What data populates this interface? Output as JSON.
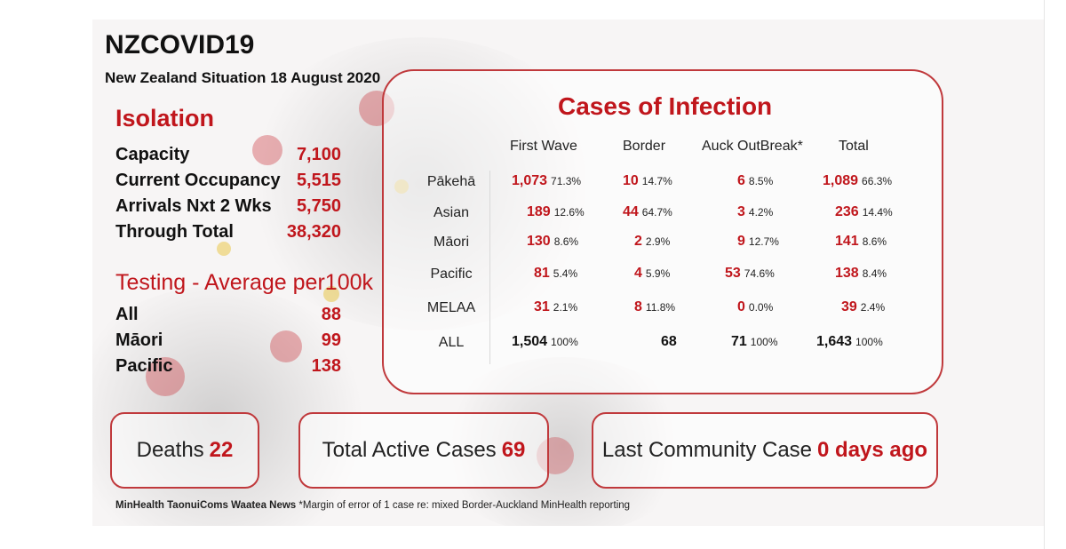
{
  "title": "NZCOVID19",
  "subtitle": "New Zealand Situation 18 August 2020",
  "isolation": {
    "heading": "Isolation",
    "rows": [
      {
        "label": "Capacity",
        "value": "7,100"
      },
      {
        "label": "Current Occupancy",
        "value": "5,515"
      },
      {
        "label": "Arrivals Nxt 2 Wks",
        "value": "5,750"
      },
      {
        "label": "Through Total",
        "value": "38,320"
      }
    ]
  },
  "testing": {
    "heading": "Testing - Average per100k",
    "rows": [
      {
        "label": "All",
        "value": "88"
      },
      {
        "label": "Māori",
        "value": "99"
      },
      {
        "label": "Pacific",
        "value": "138"
      }
    ]
  },
  "cases": {
    "heading": "Cases of Infection",
    "columns": [
      "First Wave",
      "Border",
      "Auck OutBreak*",
      "Total"
    ],
    "rows": [
      {
        "label": "Pākehā",
        "cells": [
          [
            "1,073",
            "71.3%"
          ],
          [
            "10",
            "14.7%"
          ],
          [
            "6",
            "8.5%"
          ],
          [
            "1,089",
            "66.3%"
          ]
        ]
      },
      {
        "label": "Asian",
        "cells": [
          [
            "189",
            "12.6%"
          ],
          [
            "44",
            "64.7%"
          ],
          [
            "3",
            "4.2%"
          ],
          [
            "236",
            "14.4%"
          ]
        ]
      },
      {
        "label": "Māori",
        "cells": [
          [
            "130",
            "8.6%"
          ],
          [
            "2",
            "2.9%"
          ],
          [
            "9",
            "12.7%"
          ],
          [
            "141",
            "8.6%"
          ]
        ]
      },
      {
        "label": "Pacific",
        "cells": [
          [
            "81",
            "5.4%"
          ],
          [
            "4",
            "5.9%"
          ],
          [
            "53",
            "74.6%"
          ],
          [
            "138",
            "8.4%"
          ]
        ]
      },
      {
        "label": "MELAA",
        "cells": [
          [
            "31",
            "2.1%"
          ],
          [
            "8",
            "11.8%"
          ],
          [
            "0",
            "0.0%"
          ],
          [
            "39",
            "2.4%"
          ]
        ]
      },
      {
        "label": "ALL",
        "cells": [
          [
            "1,504",
            "100%"
          ],
          [
            "68",
            ""
          ],
          [
            "71",
            "100%"
          ],
          [
            "1,643",
            "100%"
          ]
        ]
      }
    ]
  },
  "summary": {
    "deaths_label": "Deaths",
    "deaths_value": "22",
    "active_label": "Total Active Cases",
    "active_value": "69",
    "community_label": "Last Community Case",
    "community_value": "0 days ago"
  },
  "footer": {
    "source": "MinHealth TaonuiComs Waatea News",
    "note": "*Margin of error of 1 case re: mixed Border-Auckland MinHealth reporting"
  },
  "colors": {
    "accent": "#c0161c",
    "border": "#c0393c"
  }
}
